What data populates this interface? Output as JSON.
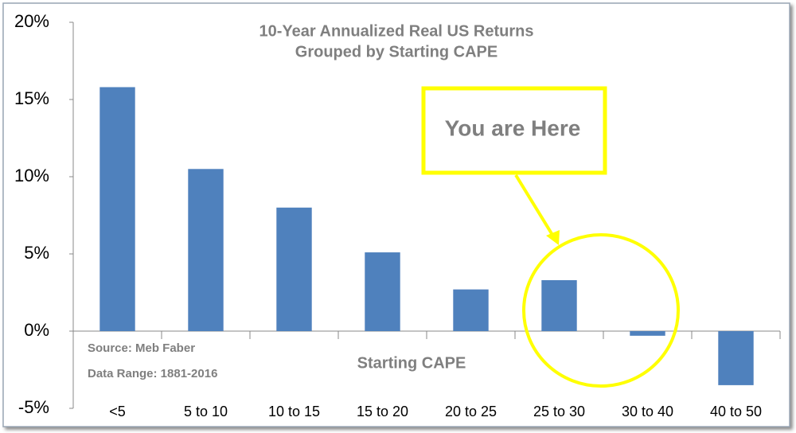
{
  "chart_data": {
    "type": "bar",
    "title": "10-Year Annualized Real US Returns",
    "subtitle": "Grouped by Starting CAPE",
    "x_label": "Starting CAPE",
    "annotations": [
      "Source: Meb Faber",
      "Data Range: 1881-2016",
      "You are Here"
    ],
    "categories": [
      "<5",
      "5 to 10",
      "10 to 15",
      "15 to 20",
      "20 to 25",
      "25 to 30",
      "30 to 40",
      "40 to 50"
    ],
    "values": [
      15.8,
      10.5,
      8.0,
      5.1,
      2.7,
      3.3,
      -0.3,
      -3.5
    ],
    "color": "#4f81bd",
    "ylim": [
      -5,
      20
    ],
    "yticks": [
      {
        "value": -5,
        "label": "-5%"
      },
      {
        "value": 0,
        "label": "0%"
      },
      {
        "value": 5,
        "label": "5%"
      },
      {
        "value": 10,
        "label": "10%"
      },
      {
        "value": 15,
        "label": "15%"
      },
      {
        "value": 20,
        "label": "20%"
      }
    ],
    "grid": false
  }
}
